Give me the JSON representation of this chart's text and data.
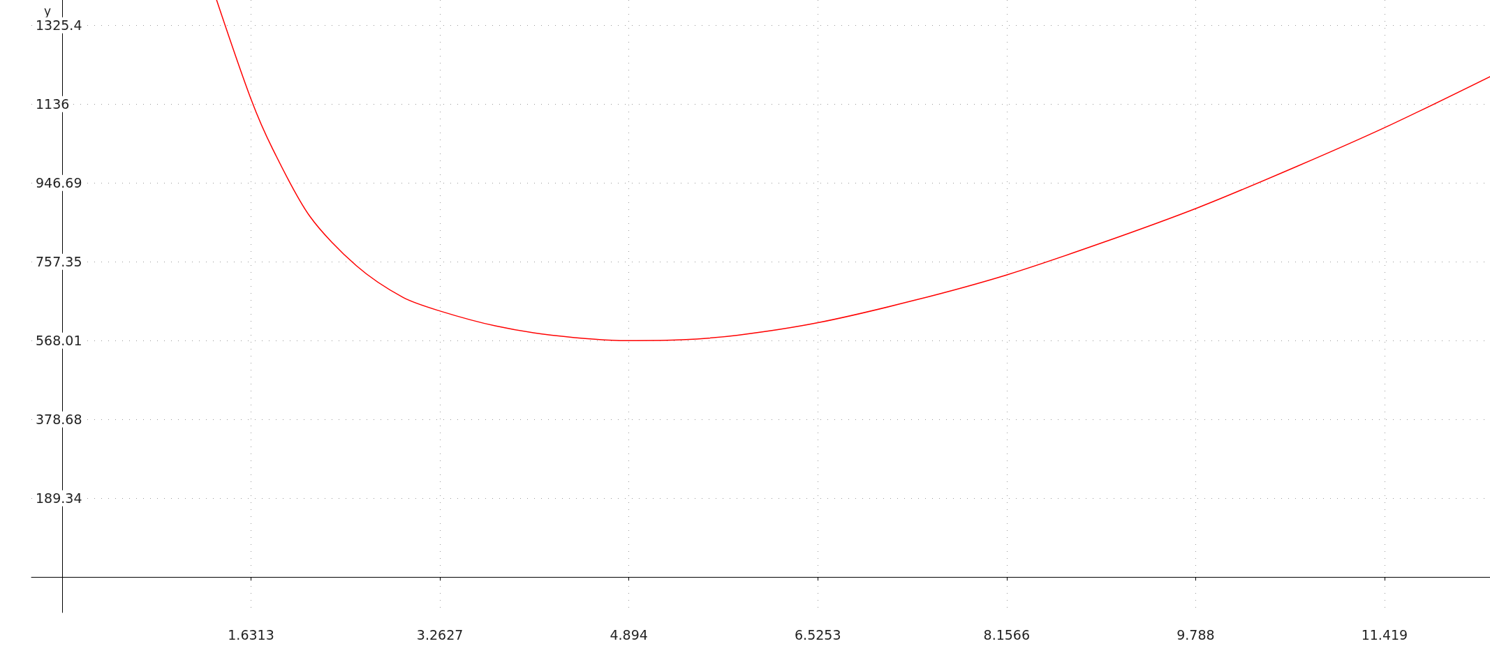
{
  "chart_data": {
    "type": "line",
    "ylabel": "y",
    "x": [
      1.334,
      1.631,
      1.817,
      2.138,
      2.54,
      2.942,
      3.264,
      3.746,
      4.228,
      4.879,
      5.354,
      5.836,
      6.527,
      7.363,
      8.159,
      8.971,
      9.815,
      10.659,
      11.447,
      12.33
    ],
    "series": [
      {
        "color": "#ff0000",
        "values": [
          1386,
          1148,
          1029,
          867,
          748,
          672,
          639,
          603,
          581,
          568,
          570,
          581,
          611,
          665,
          726,
          802,
          888,
          986,
          1083,
          1202
        ]
      }
    ],
    "xlim": [
      -0.265,
      12.33
    ],
    "ylim": [
      -85,
      1386
    ],
    "xticks": [
      1.6313,
      3.2627,
      4.894,
      6.5253,
      8.1566,
      9.788,
      11.419
    ],
    "yticks": [
      189.34,
      378.68,
      568.01,
      757.35,
      946.69,
      1136,
      1325.4
    ],
    "grid": true,
    "marker": "none",
    "line_style": "solid"
  }
}
